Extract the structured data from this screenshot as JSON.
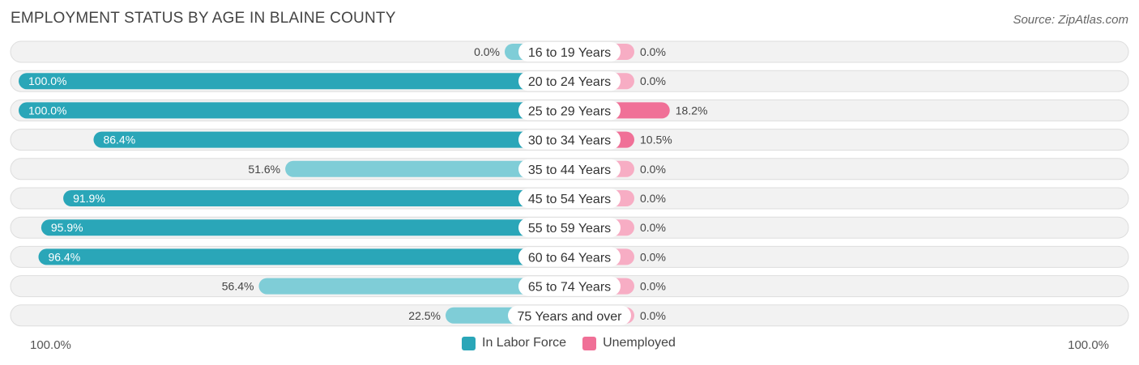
{
  "header": {
    "title": "EMPLOYMENT STATUS BY AGE IN BLAINE COUNTY",
    "source": "Source: ZipAtlas.com"
  },
  "axis": {
    "left_label": "100.0%",
    "right_label": "100.0%"
  },
  "legend": {
    "labor_label": "In Labor Force",
    "unemployed_label": "Unemployed"
  },
  "colors": {
    "labor_strong": "#2aa6b8",
    "labor_light": "#7fcdd7",
    "unemployed_strong": "#f07097",
    "unemployed_light": "#f7adc4",
    "row_bg": "#f2f2f2",
    "row_border": "#dddddd"
  },
  "chart_data": {
    "type": "bar",
    "orientation": "horizontal-diverging",
    "categories": [
      "16 to 19 Years",
      "20 to 24 Years",
      "25 to 29 Years",
      "30 to 34 Years",
      "35 to 44 Years",
      "45 to 54 Years",
      "55 to 59 Years",
      "60 to 64 Years",
      "65 to 74 Years",
      "75 Years and over"
    ],
    "series": [
      {
        "name": "In Labor Force",
        "values": [
          0.0,
          100.0,
          100.0,
          86.4,
          51.6,
          91.9,
          95.9,
          96.4,
          56.4,
          22.5
        ],
        "labels": [
          "0.0%",
          "100.0%",
          "100.0%",
          "86.4%",
          "51.6%",
          "91.9%",
          "95.9%",
          "96.4%",
          "56.4%",
          "22.5%"
        ]
      },
      {
        "name": "Unemployed",
        "values": [
          0.0,
          0.0,
          18.2,
          10.5,
          0.0,
          0.0,
          0.0,
          0.0,
          0.0,
          0.0
        ],
        "labels": [
          "0.0%",
          "0.0%",
          "18.2%",
          "10.5%",
          "0.0%",
          "0.0%",
          "0.0%",
          "0.0%",
          "0.0%",
          "0.0%"
        ]
      }
    ],
    "xlim": [
      0,
      100
    ],
    "legend_position": "bottom-center"
  }
}
